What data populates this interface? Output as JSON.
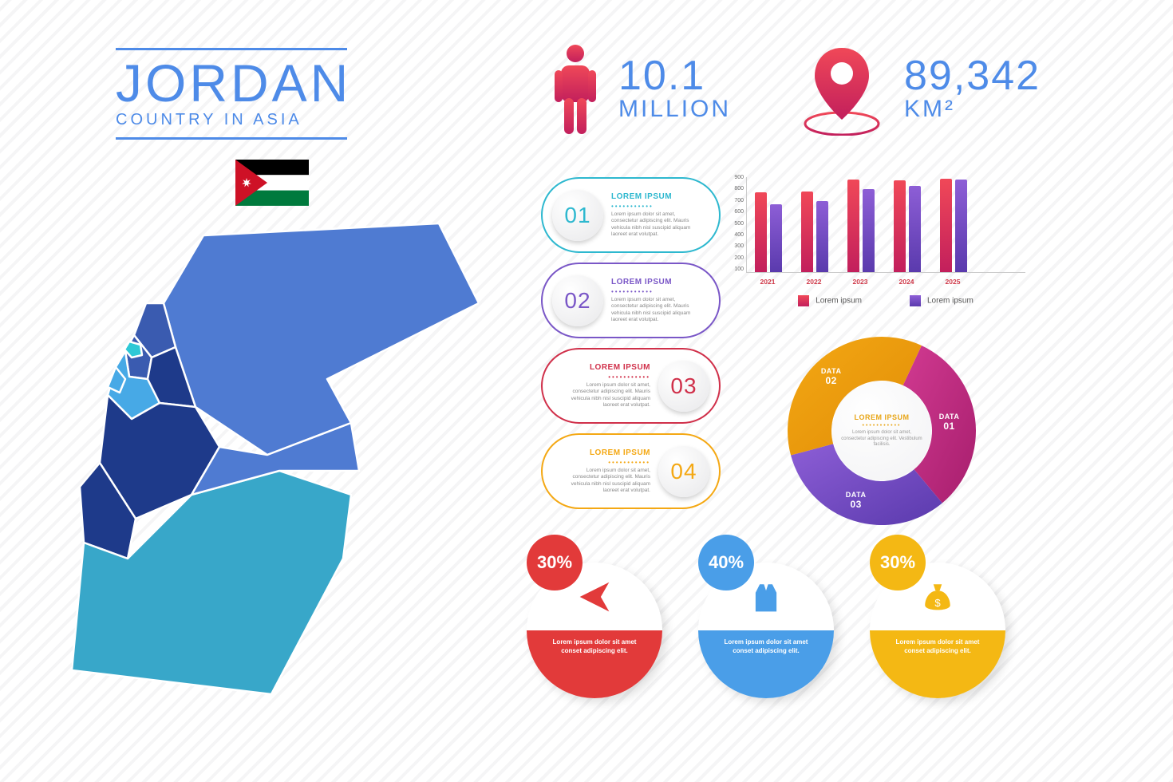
{
  "title": {
    "main": "JORDAN",
    "sub": "COUNTRY IN ASIA"
  },
  "colors": {
    "brand_blue": "#4e8be8",
    "red_grad_a": "#f04858",
    "red_grad_b": "#c21f5c",
    "purple_grad_a": "#8d5ed6",
    "purple_grad_b": "#5a3aad",
    "teal": "#2eb8cf",
    "violet": "#7a57c7",
    "crimson": "#d0304a",
    "amber": "#f4a814",
    "flag_black": "#000000",
    "flag_white": "#ffffff",
    "flag_green": "#007a3d",
    "flag_red": "#ce1126"
  },
  "population": {
    "value": "10.1",
    "unit": "MILLION"
  },
  "area": {
    "value": "89,342",
    "unit": "KM²"
  },
  "pills": [
    {
      "num": "01",
      "title": "LOREM IPSUM",
      "desc": "Lorem ipsum dolor sit amet, consectetur adipiscing elit. Mauris vehicula nibh nisl suscipid aliquam laoreet erat volutpat.",
      "color": "#2eb8cf",
      "reverse": false
    },
    {
      "num": "02",
      "title": "LOREM IPSUM",
      "desc": "Lorem ipsum dolor sit amet, consectetur adipiscing elit. Mauris vehicula nibh nisl suscipid aliquam laoreet erat volutpat.",
      "color": "#7a57c7",
      "reverse": false
    },
    {
      "num": "03",
      "title": "LOREM IPSUM",
      "desc": "Lorem ipsum dolor sit amet, consectetur adipiscing elit. Mauris vehicula nibh nisl suscipid aliquam laoreet erat volutpat.",
      "color": "#d0304a",
      "reverse": true
    },
    {
      "num": "04",
      "title": "LOREM IPSUM",
      "desc": "Lorem ipsum dolor sit amet, consectetur adipiscing elit. Mauris vehicula nibh nisl suscipid aliquam laoreet erat volutpat.",
      "color": "#f4a814",
      "reverse": true
    }
  ],
  "bar_chart": {
    "ymax": 900,
    "ytick": 100,
    "years": [
      "2021",
      "2022",
      "2023",
      "2024",
      "2025"
    ],
    "series": [
      {
        "name": "Lorem ipsum",
        "grad": [
          "#f04858",
          "#c21f5c"
        ],
        "values": [
          750,
          760,
          870,
          860,
          880
        ]
      },
      {
        "name": "Lorem ipsum",
        "grad": [
          "#8d5ed6",
          "#5a3aad"
        ],
        "values": [
          640,
          670,
          780,
          810,
          870
        ]
      }
    ]
  },
  "donut": {
    "segments": [
      {
        "label": "DATA",
        "num": "01",
        "color_a": "#d13a91",
        "color_b": "#a71e6d",
        "start": -65,
        "sweep": 115
      },
      {
        "label": "DATA",
        "num": "03",
        "color_a": "#8d5ed6",
        "color_b": "#5a3aad",
        "start": 50,
        "sweep": 115
      },
      {
        "label": "DATA",
        "num": "02",
        "color_a": "#f4a814",
        "color_b": "#e08c06",
        "start": 165,
        "sweep": 130
      }
    ],
    "center": {
      "title": "LOREM IPSUM",
      "desc": "Lorem ipsum dolor sit amet, consectetur adipiscing elit. Vestibulum facilisis."
    }
  },
  "circles": [
    {
      "pct": "30%",
      "color": "#e23a3a",
      "icon": "plane",
      "text": "Lorem ipsum dolor sit amet conset adipiscing elit."
    },
    {
      "pct": "40%",
      "color": "#4a9ee8",
      "icon": "suit",
      "text": "Lorem ipsum dolor sit amet conset adipiscing elit."
    },
    {
      "pct": "30%",
      "color": "#f4b814",
      "icon": "money",
      "text": "Lorem ipsum dolor sit amet conset adipiscing elit."
    }
  ],
  "map_regions": [
    "#4f7bd2",
    "#3a5bb0",
    "#3a5bb0",
    "#47a9e6",
    "#2a9bc7",
    "#1e3a8a",
    "#1e3a8a",
    "#1e3a8a",
    "#47a9e6",
    "#4f7bd2",
    "#38a7c9"
  ]
}
